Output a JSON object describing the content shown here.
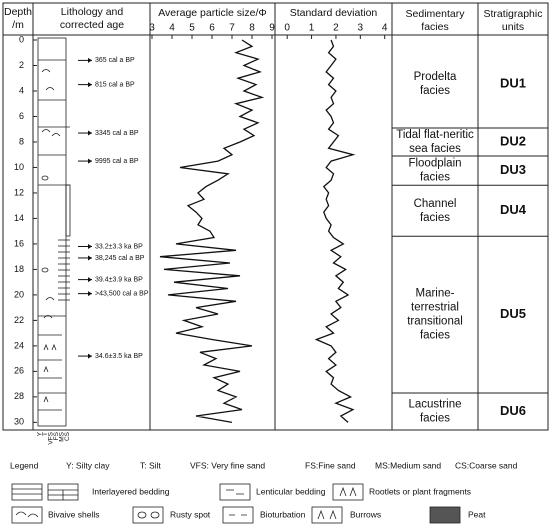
{
  "headers": {
    "depth": [
      "Depth",
      "/m"
    ],
    "lithology": [
      "Lithology and",
      "corrected age"
    ],
    "facies": [
      "Sedimentary",
      "facies"
    ],
    "units": [
      "Stratigraphic",
      "units"
    ]
  },
  "depth_axis": {
    "lim": [
      0,
      30.6
    ],
    "ticks": [
      0,
      2,
      4,
      6,
      8,
      10,
      12,
      14,
      16,
      18,
      20,
      22,
      24,
      26,
      28,
      30
    ]
  },
  "chart_data": [
    {
      "type": "line",
      "title": "Average particle size/Φ",
      "color": "#111",
      "x": [
        0,
        0.5,
        1,
        1.5,
        2,
        2.5,
        3,
        3.5,
        4,
        4.5,
        5,
        5.5,
        6,
        6.5,
        7,
        7.5,
        8,
        8.5,
        9,
        9.5,
        10,
        10.5,
        11,
        11.5,
        12,
        12.5,
        13,
        13.5,
        14,
        14.5,
        15,
        15.5,
        16,
        16.5,
        17,
        17.5,
        18,
        18.5,
        19,
        19.5,
        20,
        20.5,
        21,
        21.5,
        22,
        22.5,
        23,
        23.5,
        24,
        24.5,
        25,
        25.5,
        26,
        26.5,
        27,
        27.5,
        28,
        28.5,
        29,
        29.5,
        30
      ],
      "values": [
        7.5,
        8,
        7.2,
        8.3,
        7.6,
        8.4,
        7.3,
        8.2,
        7.6,
        8.5,
        7.2,
        8,
        7.4,
        8.3,
        7.6,
        8.1,
        7.4,
        6.6,
        7,
        6.3,
        4.4,
        6.8,
        6.3,
        5.7,
        5.3,
        5.6,
        4.8,
        5.2,
        5.5,
        5.3,
        5.9,
        6.1,
        4.2,
        7.2,
        3.4,
        6.9,
        3.6,
        7.4,
        4.1,
        6.8,
        3.8,
        7.2,
        5.2,
        6.3,
        4.6,
        5.5,
        4.2,
        6,
        8,
        5.4,
        6.2,
        5.6,
        7.4,
        6.1,
        6.8,
        6.3,
        7.2,
        6.6,
        7.5,
        5.2,
        7
      ],
      "ylim": [
        2.9,
        9.15
      ],
      "yticks": [
        3,
        4,
        5,
        6,
        7,
        8,
        9
      ]
    },
    {
      "type": "line",
      "title": "Standard deviation",
      "color": "#111",
      "x": [
        0,
        0.5,
        1,
        1.5,
        2,
        2.5,
        3,
        3.5,
        4,
        4.5,
        5,
        5.5,
        6,
        6.5,
        7,
        7.5,
        8,
        8.5,
        9,
        9.5,
        10,
        10.5,
        11,
        11.5,
        12,
        12.5,
        13,
        13.5,
        14,
        14.5,
        15,
        15.5,
        16,
        16.5,
        17,
        17.5,
        18,
        18.5,
        19,
        19.5,
        20,
        20.5,
        21,
        21.5,
        22,
        22.5,
        23,
        23.5,
        24,
        24.5,
        25,
        25.5,
        26,
        26.5,
        27,
        27.5,
        28,
        28.5,
        29,
        29.5,
        30
      ],
      "values": [
        1.8,
        1.9,
        1.7,
        2,
        1.8,
        1.6,
        1.9,
        1.7,
        2,
        1.8,
        1.9,
        1.6,
        1.8,
        1.9,
        1.7,
        2.1,
        1.9,
        1.7,
        2.7,
        1.8,
        1.6,
        1.9,
        1.8,
        1.5,
        1.7,
        1.6,
        1.7,
        1.5,
        1.6,
        1.8,
        1.7,
        1.9,
        2.3,
        1.8,
        2.2,
        1.9,
        2.4,
        2,
        2.3,
        2.1,
        2.5,
        2,
        2.2,
        1.8,
        2.1,
        1.6,
        1.9,
        1.2,
        1.8,
        2,
        1.7,
        2,
        1.6,
        1.9,
        1.8,
        2.1,
        2.6,
        2,
        2.7,
        2.2,
        2.5
      ],
      "ylim": [
        -0.5,
        4.3
      ],
      "yticks": [
        0,
        1,
        2,
        3,
        4
      ]
    }
  ],
  "ages": [
    {
      "label": "365 cal a BP",
      "depth": 1.6
    },
    {
      "label": "815 cal a BP",
      "depth": 3.5
    },
    {
      "label": "3345 cal a BP",
      "depth": 7.3
    },
    {
      "label": "9995 cal a BP",
      "depth": 9.5
    },
    {
      "label": "33.2±3.3 ka BP",
      "depth": 16.2
    },
    {
      "label": "38,245 cal a BP",
      "depth": 17.1
    },
    {
      "label": "39.4±3.9 ka BP",
      "depth": 18.8
    },
    {
      "label": ">43,500 cal a BP",
      "depth": 19.9
    },
    {
      "label": "34.6±3.5 ka BP",
      "depth": 24.8
    }
  ],
  "grain_sizes": [
    "Y",
    "T",
    "VFS",
    "FS",
    "MS",
    "CS"
  ],
  "facies": [
    {
      "lines": [
        "Prodelta",
        "facies"
      ],
      "unit": "DU1",
      "top": 0,
      "bottom": 6.9
    },
    {
      "lines": [
        "Tidal flat-neritic",
        "sea facies"
      ],
      "unit": "DU2",
      "top": 6.9,
      "bottom": 9.1
    },
    {
      "lines": [
        "Floodplain",
        "facies"
      ],
      "unit": "DU3",
      "top": 9.1,
      "bottom": 11.4
    },
    {
      "lines": [
        "Channel",
        "facies"
      ],
      "unit": "DU4",
      "top": 11.4,
      "bottom": 15.4
    },
    {
      "lines": [
        "Marine-",
        "terrestrial",
        "transitional",
        "facies"
      ],
      "unit": "DU5",
      "top": 15.4,
      "bottom": 27.7
    },
    {
      "lines": [
        "Lacustrine",
        "facies"
      ],
      "unit": "DU6",
      "top": 27.7,
      "bottom": 30.6
    }
  ],
  "legend": {
    "title": "Legend",
    "row1": [
      "Y: Silty clay",
      "T: Silt",
      "VFS: Very fine sand",
      "FS:Fine sand",
      "MS:Medium sand",
      "CS:Coarse sand"
    ],
    "row2": [
      "Interlayered bedding",
      "Lenticular bedding",
      "Rootlets or plant fragments"
    ],
    "row3": [
      "Bivaive shells",
      "Rusty spot",
      "Bioturbation",
      "Burrows",
      "Peat"
    ]
  }
}
